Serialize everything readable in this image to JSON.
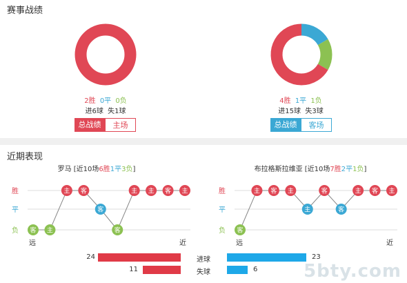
{
  "colors": {
    "win": "#e04755",
    "draw": "#3ba8d4",
    "loss": "#8cc152",
    "red_bar": "#e03a47",
    "blue_bar": "#1ea8e8",
    "grid": "#dddddd"
  },
  "section1": {
    "title": "赛事战绩"
  },
  "team_left_summary": {
    "win": "2胜",
    "draw": "0平",
    "loss": "0负",
    "goals": "进6球  失1球",
    "tabs": [
      "总战绩",
      "主场"
    ],
    "pie": {
      "win": 2,
      "draw": 0,
      "loss": 0
    }
  },
  "team_right_summary": {
    "win": "4胜",
    "draw": "1平",
    "loss": "1负",
    "goals": "进15球  失3球",
    "tabs": [
      "总战绩",
      "客场"
    ],
    "pie": {
      "win": 4,
      "draw": 1,
      "loss": 1
    }
  },
  "section2": {
    "title": "近期表现"
  },
  "recent_left": {
    "team": "罗马",
    "prefix": " [近10场",
    "w": "6胜",
    "d": "1平",
    "l": "3负",
    "suffix": "]",
    "ylabels": [
      "胜",
      "平",
      "负"
    ],
    "xlabels": [
      "远",
      "近"
    ],
    "matches": [
      {
        "result": "loss",
        "venue": "客"
      },
      {
        "result": "loss",
        "venue": "主"
      },
      {
        "result": "win",
        "venue": "主"
      },
      {
        "result": "win",
        "venue": "客"
      },
      {
        "result": "draw",
        "venue": "客"
      },
      {
        "result": "loss",
        "venue": "客"
      },
      {
        "result": "win",
        "venue": "主"
      },
      {
        "result": "win",
        "venue": "主"
      },
      {
        "result": "win",
        "venue": "客"
      },
      {
        "result": "win",
        "venue": "主"
      }
    ]
  },
  "recent_right": {
    "team": "布拉格斯拉维亚",
    "prefix": " [近10场",
    "w": "7胜",
    "d": "2平",
    "l": "1负",
    "suffix": "]",
    "ylabels": [
      "胜",
      "平",
      "负"
    ],
    "xlabels": [
      "远",
      "近"
    ],
    "matches": [
      {
        "result": "loss",
        "venue": "客"
      },
      {
        "result": "win",
        "venue": "主"
      },
      {
        "result": "win",
        "venue": "客"
      },
      {
        "result": "win",
        "venue": "主"
      },
      {
        "result": "draw",
        "venue": "主"
      },
      {
        "result": "win",
        "venue": "客"
      },
      {
        "result": "draw",
        "venue": "客"
      },
      {
        "result": "win",
        "venue": "主"
      },
      {
        "result": "win",
        "venue": "客"
      },
      {
        "result": "win",
        "venue": "主"
      }
    ]
  },
  "stats": [
    {
      "label": "进球",
      "left": "24",
      "right": "23",
      "left_val": 24,
      "right_val": 23
    },
    {
      "label": "失球",
      "left": "11",
      "right": "6",
      "left_val": 11,
      "right_val": 6
    }
  ],
  "watermark": "5bty.com"
}
